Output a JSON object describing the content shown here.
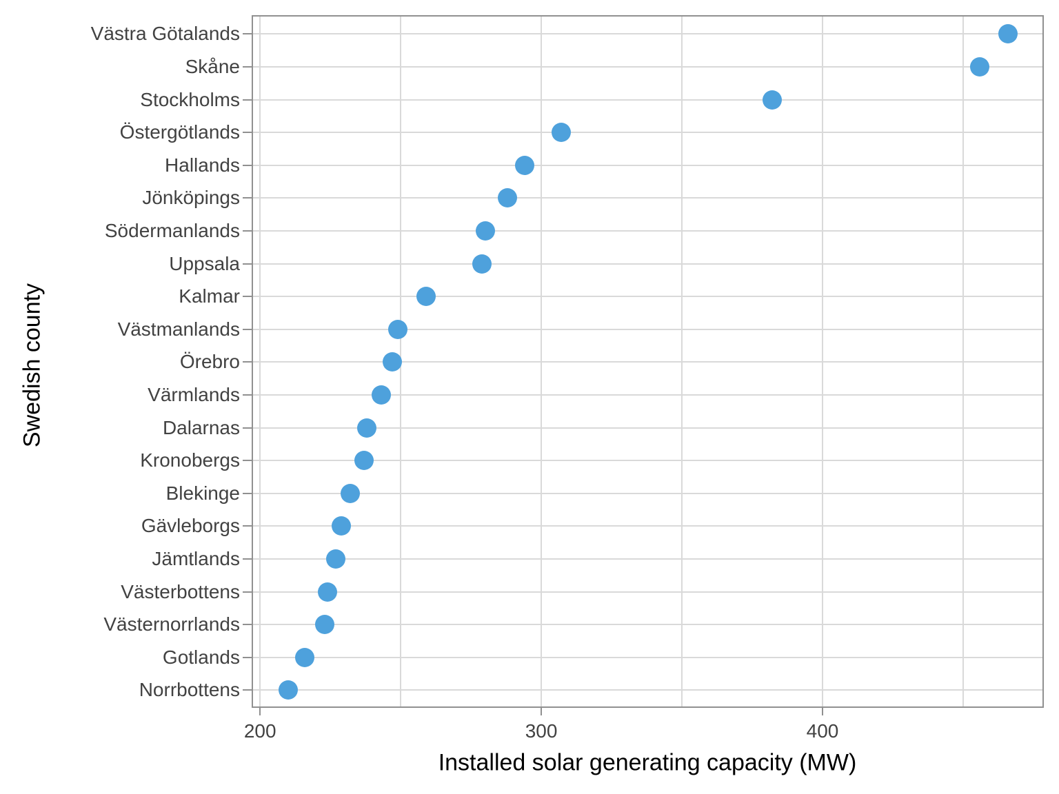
{
  "chart_data": {
    "type": "scatter",
    "subtype": "cleveland-dot-plot",
    "title": "",
    "xlabel": "Installed solar generating capacity (MW)",
    "ylabel": "Swedish county",
    "units": "MW",
    "categories": [
      "Västra Götalands",
      "Skåne",
      "Stockholms",
      "Östergötlands",
      "Hallands",
      "Jönköpings",
      "Södermanlands",
      "Uppsala",
      "Kalmar",
      "Västmanlands",
      "Örebro",
      "Värmlands",
      "Dalarnas",
      "Kronobergs",
      "Blekinge",
      "Gävleborgs",
      "Jämtlands",
      "Västerbottens",
      "Västernorrlands",
      "Gotlands",
      "Norrbottens"
    ],
    "values": [
      466,
      456,
      382,
      307,
      294,
      288,
      280,
      279,
      259,
      249,
      247,
      243,
      238,
      237,
      232,
      229,
      227,
      224,
      223,
      216,
      210
    ],
    "xlim": [
      197.5,
      478.2
    ],
    "x_ticks": [
      {
        "value": 200,
        "label": "200"
      },
      {
        "value": 300,
        "label": "300"
      },
      {
        "value": 400,
        "label": "400"
      }
    ],
    "x_gridlines": [
      200,
      250,
      300,
      350,
      400,
      450
    ],
    "grid": "vertical every 50 MW, horizontal line per category row",
    "legend": "none",
    "colors": {
      "dot": "#4EA1DC",
      "gridline": "#d9d9d9",
      "panel_border": "#909090",
      "tick_mark": "#909090",
      "tick_label": "#424242",
      "axis_title": "#000000",
      "background": "#ffffff"
    }
  }
}
